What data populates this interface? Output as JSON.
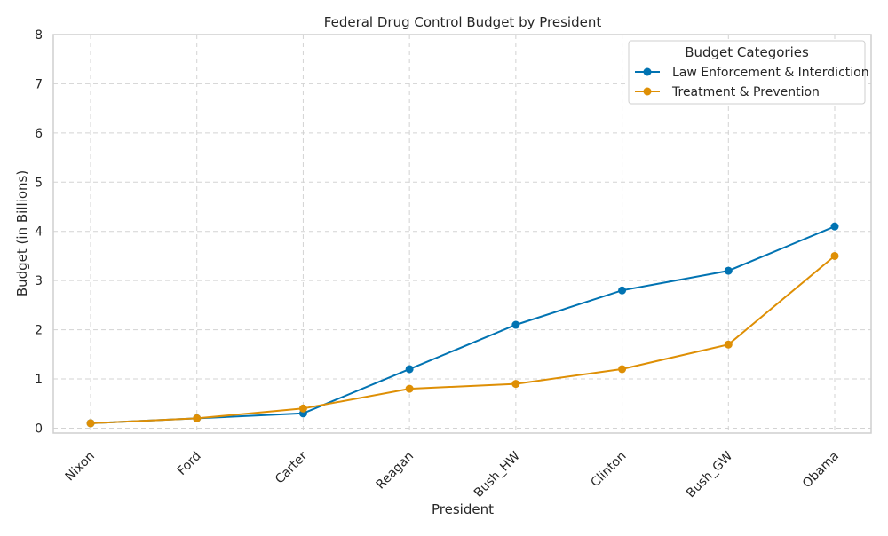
{
  "chart_data": {
    "type": "line",
    "title": "Federal Drug Control Budget by President",
    "xlabel": "President",
    "ylabel": "Budget (in Billions)",
    "categories": [
      "Nixon",
      "Ford",
      "Carter",
      "Reagan",
      "Bush_HW",
      "Clinton",
      "Bush_GW",
      "Obama"
    ],
    "ylim": [
      -0.1,
      8
    ],
    "yticks": [
      0,
      1,
      2,
      3,
      4,
      5,
      6,
      7,
      8
    ],
    "grid": true,
    "legend": {
      "title": "Budget Categories",
      "placement": "top-right"
    },
    "series": [
      {
        "name": "Law Enforcement & Interdiction",
        "color": "#0173b2",
        "values": [
          0.1,
          0.2,
          0.3,
          1.2,
          2.1,
          2.8,
          3.2,
          4.1
        ]
      },
      {
        "name": "Treatment & Prevention",
        "color": "#de8f05",
        "values": [
          0.1,
          0.2,
          0.4,
          0.8,
          0.9,
          1.2,
          1.7,
          3.5
        ]
      }
    ]
  }
}
